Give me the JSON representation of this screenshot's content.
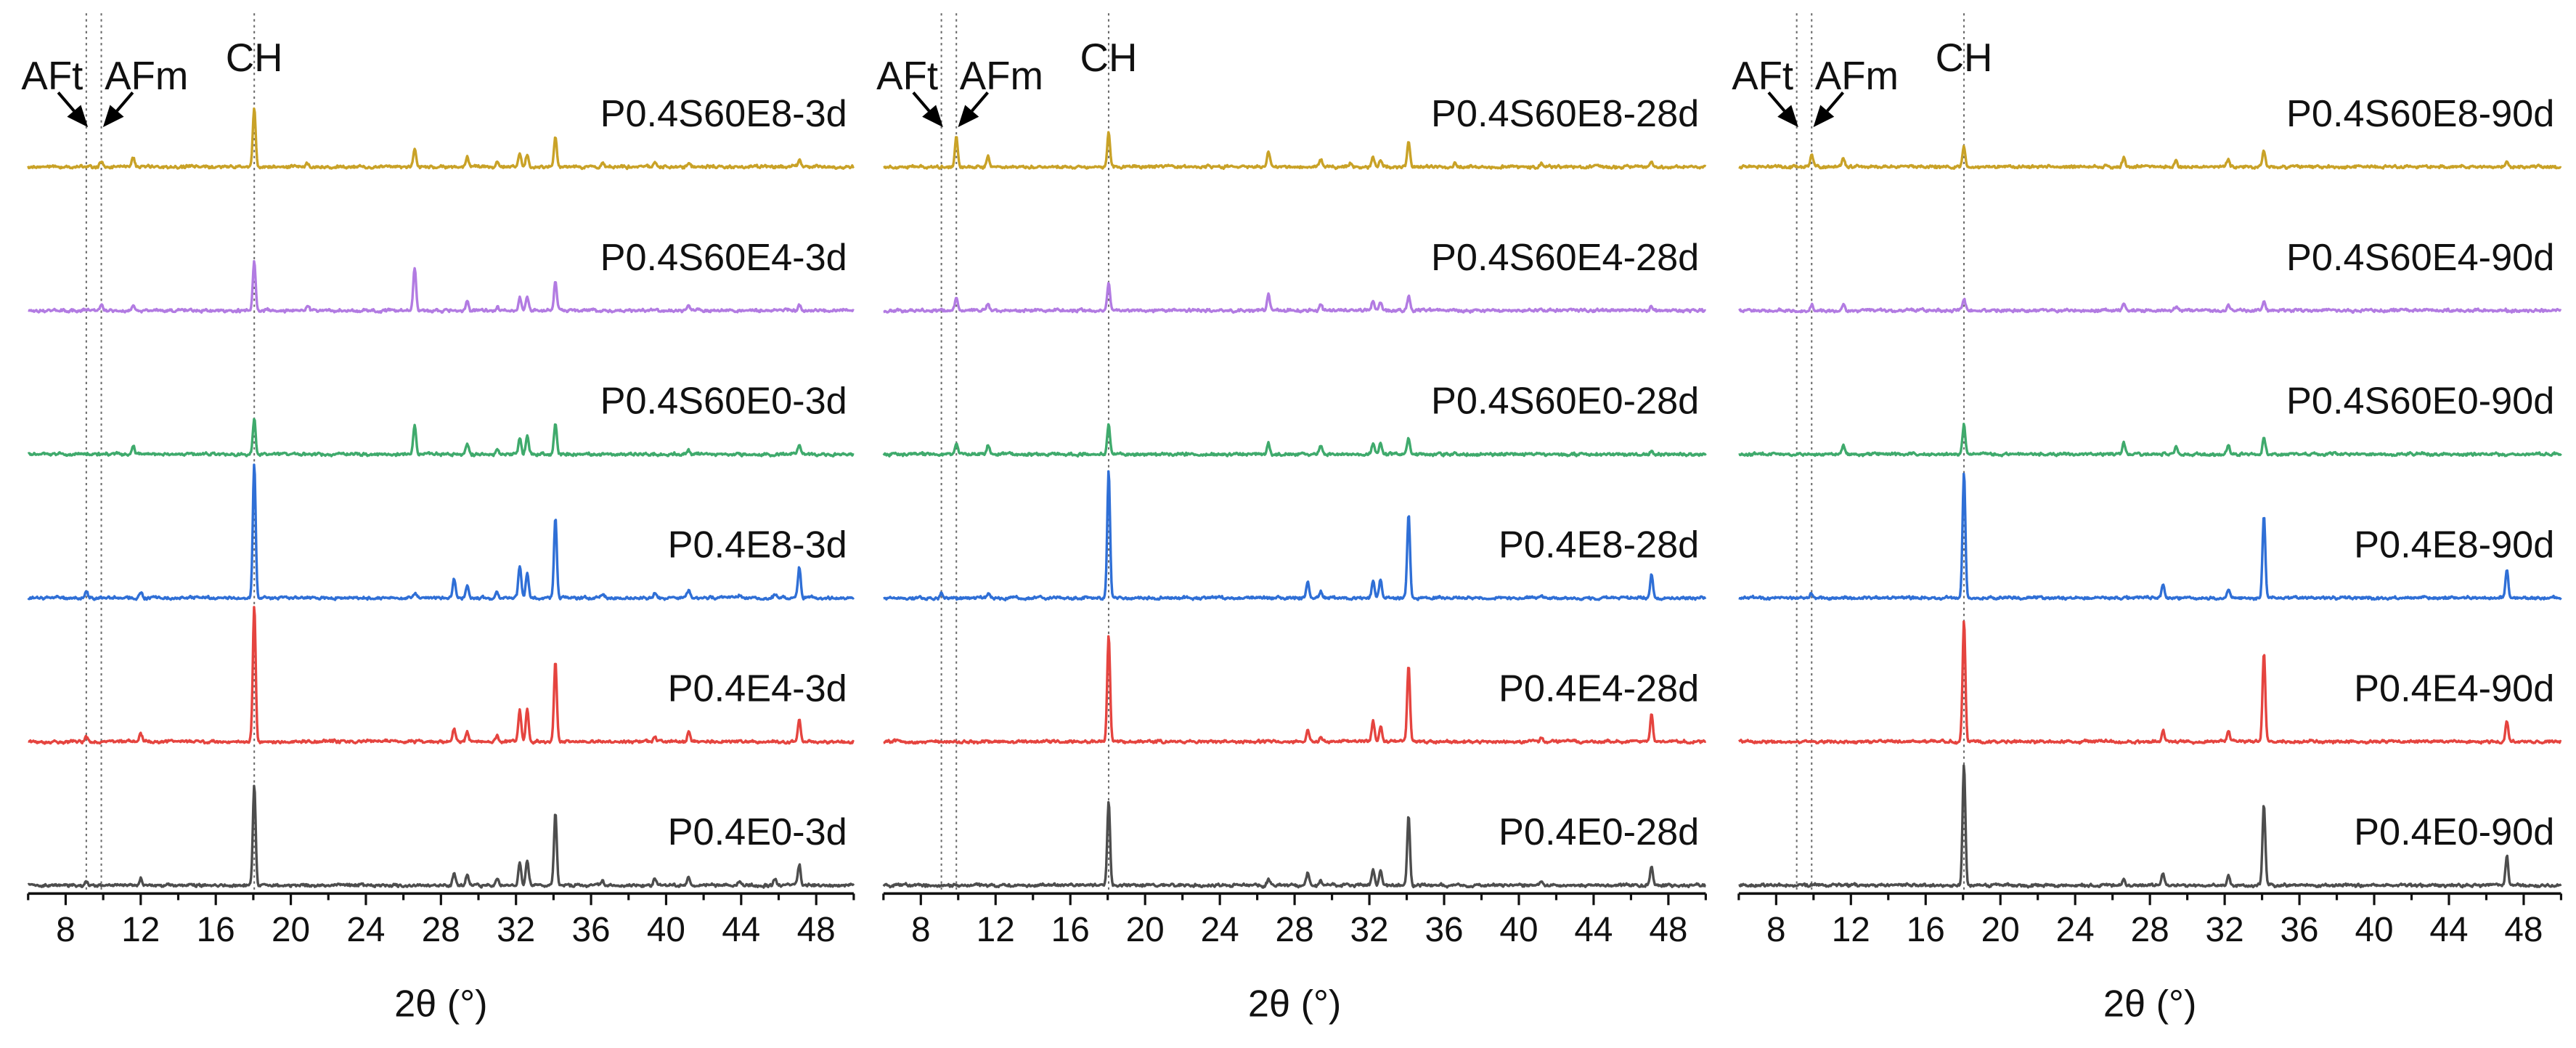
{
  "chart_data": [
    {
      "type": "line",
      "xlabel": "2θ (°)",
      "ylabel": "",
      "xlim": [
        6,
        50
      ],
      "xticks": [
        8,
        12,
        16,
        20,
        24,
        28,
        32,
        36,
        40,
        44,
        48
      ],
      "grid": false,
      "reference_lines": [
        {
          "label": "AFt",
          "x": 9.1
        },
        {
          "label": "AFm",
          "x": 9.9
        },
        {
          "label": "CH",
          "x": 18.05
        }
      ],
      "series": [
        {
          "name": "P0.4S60E8-3d",
          "color": "#C9A227",
          "peaks": [
            [
              9.9,
              4
            ],
            [
              11.6,
              7
            ],
            [
              18.05,
              43
            ],
            [
              20.9,
              3
            ],
            [
              26.6,
              13
            ],
            [
              29.4,
              7
            ],
            [
              31.0,
              4
            ],
            [
              32.2,
              10
            ],
            [
              32.6,
              9
            ],
            [
              34.1,
              22
            ],
            [
              36.6,
              3
            ],
            [
              39.4,
              3
            ],
            [
              41.2,
              3
            ],
            [
              47.1,
              5
            ]
          ]
        },
        {
          "name": "P0.4S60E4-3d",
          "color": "#B27BE2",
          "peaks": [
            [
              9.9,
              4
            ],
            [
              11.6,
              4
            ],
            [
              18.05,
              37
            ],
            [
              20.9,
              3
            ],
            [
              26.6,
              32
            ],
            [
              29.4,
              7
            ],
            [
              31.0,
              3
            ],
            [
              32.2,
              10
            ],
            [
              32.6,
              10
            ],
            [
              34.1,
              22
            ],
            [
              41.2,
              3
            ],
            [
              47.1,
              4
            ]
          ]
        },
        {
          "name": "P0.4S60E0-3d",
          "color": "#3FAA6C",
          "peaks": [
            [
              11.6,
              6
            ],
            [
              18.05,
              26
            ],
            [
              26.6,
              22
            ],
            [
              29.4,
              8
            ],
            [
              31.0,
              4
            ],
            [
              32.2,
              12
            ],
            [
              32.6,
              13
            ],
            [
              34.1,
              23
            ],
            [
              41.2,
              3
            ],
            [
              47.1,
              6
            ]
          ]
        },
        {
          "name": "P0.4E8-3d",
          "color": "#2F6FD6",
          "peaks": [
            [
              9.1,
              5
            ],
            [
              12.0,
              4
            ],
            [
              18.05,
              99
            ],
            [
              26.6,
              3
            ],
            [
              28.7,
              14
            ],
            [
              29.4,
              9
            ],
            [
              31.0,
              4
            ],
            [
              32.2,
              24
            ],
            [
              32.6,
              19
            ],
            [
              34.1,
              60
            ],
            [
              36.6,
              3
            ],
            [
              39.4,
              4
            ],
            [
              41.2,
              6
            ],
            [
              43.9,
              2
            ],
            [
              45.8,
              3
            ],
            [
              47.1,
              23
            ]
          ]
        },
        {
          "name": "P0.4E4-3d",
          "color": "#E5443F",
          "peaks": [
            [
              9.1,
              3
            ],
            [
              12.0,
              6
            ],
            [
              18.05,
              100
            ],
            [
              28.7,
              10
            ],
            [
              29.4,
              7
            ],
            [
              31.0,
              4
            ],
            [
              32.2,
              24
            ],
            [
              32.6,
              25
            ],
            [
              34.1,
              59
            ],
            [
              39.4,
              4
            ],
            [
              41.2,
              7
            ],
            [
              47.1,
              17
            ]
          ]
        },
        {
          "name": "P0.4E0-3d",
          "color": "#4D4D4D",
          "peaks": [
            [
              9.1,
              3
            ],
            [
              12.0,
              5
            ],
            [
              18.05,
              74
            ],
            [
              28.7,
              9
            ],
            [
              29.4,
              9
            ],
            [
              31.0,
              5
            ],
            [
              32.2,
              17
            ],
            [
              32.6,
              18
            ],
            [
              34.1,
              53
            ],
            [
              36.6,
              4
            ],
            [
              39.4,
              5
            ],
            [
              41.2,
              7
            ],
            [
              43.9,
              3
            ],
            [
              45.8,
              4
            ],
            [
              47.1,
              15
            ]
          ]
        }
      ]
    },
    {
      "type": "line",
      "xlabel": "2θ (°)",
      "ylabel": "",
      "xlim": [
        6,
        50
      ],
      "xticks": [
        8,
        12,
        16,
        20,
        24,
        28,
        32,
        36,
        40,
        44,
        48
      ],
      "grid": false,
      "reference_lines": [
        {
          "label": "AFt",
          "x": 9.1
        },
        {
          "label": "AFm",
          "x": 9.9
        },
        {
          "label": "CH",
          "x": 18.05
        }
      ],
      "series": [
        {
          "name": "P0.4S60E8-28d",
          "color": "#C9A227",
          "peaks": [
            [
              9.9,
              23
            ],
            [
              11.6,
              8
            ],
            [
              18.05,
              26
            ],
            [
              26.6,
              11
            ],
            [
              29.4,
              6
            ],
            [
              31.0,
              3
            ],
            [
              32.2,
              7
            ],
            [
              32.6,
              6
            ],
            [
              34.1,
              18
            ],
            [
              36.6,
              3
            ],
            [
              41.2,
              3
            ],
            [
              47.1,
              4
            ]
          ]
        },
        {
          "name": "P0.4S60E4-28d",
          "color": "#B27BE2",
          "peaks": [
            [
              9.9,
              9
            ],
            [
              11.6,
              5
            ],
            [
              18.05,
              20
            ],
            [
              26.6,
              12
            ],
            [
              29.4,
              5
            ],
            [
              32.2,
              7
            ],
            [
              32.6,
              6
            ],
            [
              34.1,
              11
            ],
            [
              47.1,
              3
            ]
          ]
        },
        {
          "name": "P0.4S60E0-28d",
          "color": "#3FAA6C",
          "peaks": [
            [
              9.9,
              7
            ],
            [
              11.6,
              7
            ],
            [
              18.05,
              22
            ],
            [
              26.6,
              8
            ],
            [
              29.4,
              6
            ],
            [
              32.2,
              9
            ],
            [
              32.6,
              8
            ],
            [
              34.1,
              12
            ],
            [
              47.1,
              3
            ]
          ]
        },
        {
          "name": "P0.4E8-28d",
          "color": "#2F6FD6",
          "peaks": [
            [
              9.1,
              3
            ],
            [
              11.6,
              3
            ],
            [
              18.05,
              94
            ],
            [
              28.7,
              12
            ],
            [
              29.4,
              5
            ],
            [
              32.2,
              12
            ],
            [
              32.6,
              14
            ],
            [
              34.1,
              62
            ],
            [
              41.2,
              3
            ],
            [
              47.1,
              18
            ]
          ]
        },
        {
          "name": "P0.4E4-28d",
          "color": "#E5443F",
          "peaks": [
            [
              18.05,
              79
            ],
            [
              28.7,
              9
            ],
            [
              29.4,
              4
            ],
            [
              32.2,
              16
            ],
            [
              32.6,
              12
            ],
            [
              34.1,
              57
            ],
            [
              41.2,
              3
            ],
            [
              47.1,
              20
            ]
          ]
        },
        {
          "name": "P0.4E0-28d",
          "color": "#4D4D4D",
          "peaks": [
            [
              18.05,
              63
            ],
            [
              26.6,
              4
            ],
            [
              28.7,
              9
            ],
            [
              29.4,
              4
            ],
            [
              32.2,
              12
            ],
            [
              32.6,
              11
            ],
            [
              34.1,
              51
            ],
            [
              41.2,
              3
            ],
            [
              47.1,
              13
            ]
          ]
        }
      ]
    },
    {
      "type": "line",
      "xlabel": "2θ (°)",
      "ylabel": "",
      "xlim": [
        6,
        50
      ],
      "xticks": [
        8,
        12,
        16,
        20,
        24,
        28,
        32,
        36,
        40,
        44,
        48
      ],
      "grid": false,
      "reference_lines": [
        {
          "label": "AFt",
          "x": 9.1
        },
        {
          "label": "AFm",
          "x": 9.9
        },
        {
          "label": "CH",
          "x": 18.05
        }
      ],
      "series": [
        {
          "name": "P0.4S60E8-90d",
          "color": "#C9A227",
          "peaks": [
            [
              9.9,
              9
            ],
            [
              11.6,
              6
            ],
            [
              18.05,
              15
            ],
            [
              26.6,
              7
            ],
            [
              29.4,
              5
            ],
            [
              32.2,
              6
            ],
            [
              34.1,
              11
            ],
            [
              47.1,
              3
            ]
          ]
        },
        {
          "name": "P0.4S60E4-90d",
          "color": "#B27BE2",
          "peaks": [
            [
              9.9,
              5
            ],
            [
              11.6,
              4
            ],
            [
              18.05,
              9
            ],
            [
              26.6,
              6
            ],
            [
              29.4,
              3
            ],
            [
              32.2,
              4
            ],
            [
              34.1,
              7
            ]
          ]
        },
        {
          "name": "P0.4S60E0-90d",
          "color": "#3FAA6C",
          "peaks": [
            [
              11.6,
              6
            ],
            [
              18.05,
              22
            ],
            [
              26.6,
              9
            ],
            [
              29.4,
              6
            ],
            [
              32.2,
              7
            ],
            [
              34.1,
              12
            ]
          ]
        },
        {
          "name": "P0.4E8-90d",
          "color": "#2F6FD6",
          "peaks": [
            [
              9.9,
              3
            ],
            [
              18.05,
              93
            ],
            [
              28.7,
              10
            ],
            [
              32.2,
              7
            ],
            [
              34.1,
              61
            ],
            [
              47.1,
              21
            ]
          ]
        },
        {
          "name": "P0.4E4-90d",
          "color": "#E5443F",
          "peaks": [
            [
              18.05,
              89
            ],
            [
              28.7,
              9
            ],
            [
              32.2,
              7
            ],
            [
              34.1,
              66
            ],
            [
              47.1,
              15
            ]
          ]
        },
        {
          "name": "P0.4E0-90d",
          "color": "#4D4D4D",
          "peaks": [
            [
              18.05,
              89
            ],
            [
              26.6,
              5
            ],
            [
              28.7,
              9
            ],
            [
              32.2,
              8
            ],
            [
              34.1,
              59
            ],
            [
              47.1,
              22
            ]
          ]
        }
      ]
    }
  ]
}
